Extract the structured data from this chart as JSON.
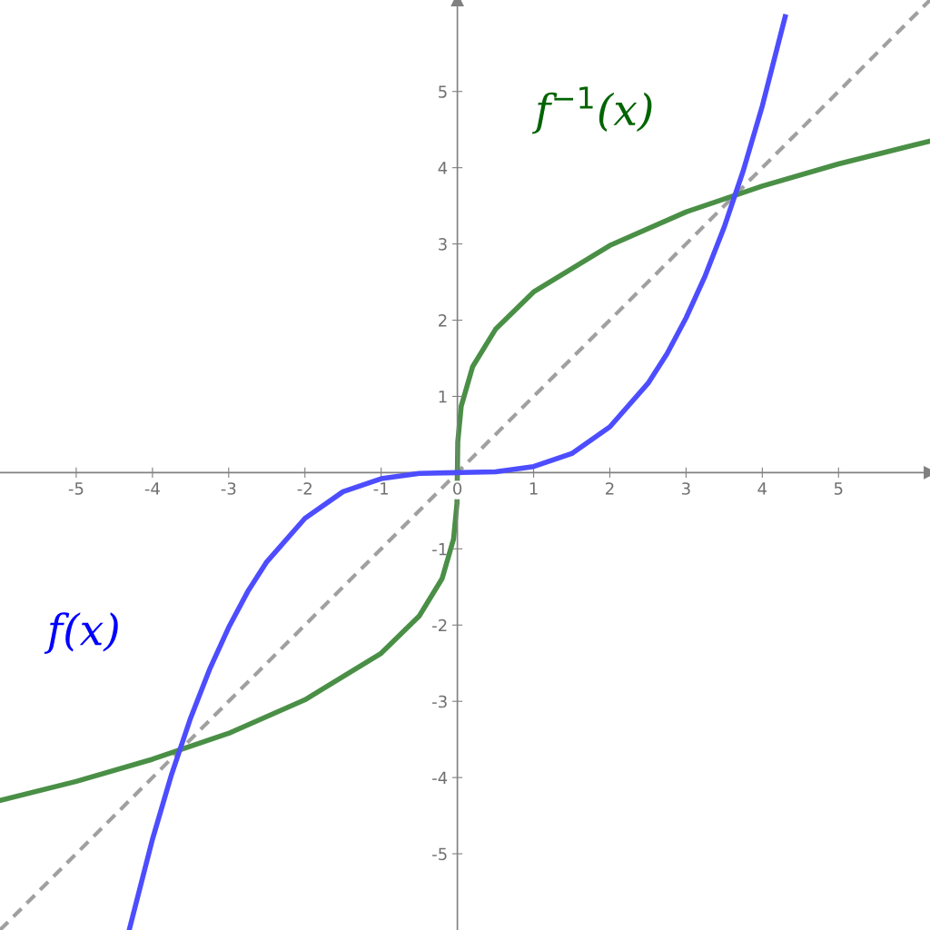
{
  "chart_data": {
    "type": "line",
    "xlim": [
      -6,
      6.2
    ],
    "ylim": [
      -6,
      6.2
    ],
    "xticks": [
      -5,
      -4,
      -3,
      -2,
      -1,
      0,
      1,
      2,
      3,
      4,
      5
    ],
    "yticks": [
      -5,
      -4,
      -3,
      -2,
      -1,
      1,
      2,
      3,
      4,
      5
    ],
    "grid": false,
    "legend": false,
    "marker": "none",
    "series": [
      {
        "name": "f(x)",
        "color": "#4d4dff",
        "line_style": "solid",
        "x": [
          -4.3,
          -4,
          -3.75,
          -3.5,
          -3.25,
          -3,
          -2.75,
          -2.5,
          -2,
          -1.5,
          -1,
          -0.5,
          0,
          0.5,
          1,
          1.5,
          2,
          2.5,
          2.75,
          3,
          3.25,
          3.5,
          3.75,
          4,
          4.3
        ],
        "values": [
          -5.98,
          -4.81,
          -3.96,
          -3.22,
          -2.58,
          -2.03,
          -1.56,
          -1.17,
          -0.6,
          -0.25,
          -0.08,
          -0.01,
          0,
          0.01,
          0.08,
          0.25,
          0.6,
          1.17,
          1.56,
          2.03,
          2.58,
          3.22,
          3.96,
          4.81,
          5.98
        ]
      },
      {
        "name": "f$^{−1}$(x)",
        "color": "#4a8f46",
        "line_style": "solid",
        "x": [
          -6,
          -5,
          -4,
          -3,
          -2,
          -1,
          -0.5,
          -0.2,
          -0.05,
          -0.005,
          0,
          0.005,
          0.05,
          0.2,
          0.5,
          1,
          2,
          3,
          4,
          5,
          6,
          6.2
        ],
        "values": [
          -4.3,
          -4.05,
          -3.76,
          -3.42,
          -2.98,
          -2.37,
          -1.88,
          -1.39,
          -0.87,
          -0.4,
          0,
          0.4,
          0.87,
          1.39,
          1.88,
          2.37,
          2.98,
          3.42,
          3.76,
          4.05,
          4.3,
          4.35
        ]
      },
      {
        "color": "#a0a0a0",
        "line_style": "dashed",
        "x": [
          -6,
          6.2
        ],
        "values": [
          -6,
          6.2
        ]
      }
    ]
  }
}
